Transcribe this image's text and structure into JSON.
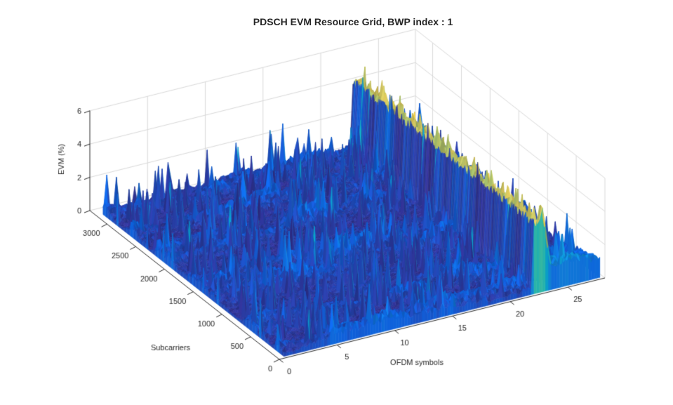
{
  "chart_data": {
    "type": "surface",
    "title": "PDSCH EVM Resource Grid, BWP index : 1",
    "xlabel": "OFDM symbols",
    "ylabel": "Subcarriers",
    "zlabel": "EVM (%)",
    "x_ticks": [
      0,
      5,
      10,
      15,
      20,
      25
    ],
    "y_ticks": [
      0,
      500,
      1000,
      1500,
      2000,
      2500,
      3000
    ],
    "z_ticks": [
      0,
      2,
      4,
      6
    ],
    "xlim": [
      0,
      28.2
    ],
    "ylim": [
      0,
      3300
    ],
    "zlim": [
      0,
      6
    ],
    "grid": true,
    "legend": "none",
    "colormap": "parula",
    "colormap_stops": [
      "#352a87",
      "#0f62dd",
      "#1283d4",
      "#07a9c2",
      "#35b8a2",
      "#88bd77",
      "#d3bb55",
      "#f9cb35",
      "#f9fb0e"
    ],
    "surface": {
      "description": "Per-resource-element EVM (%) over the PDSCH resource grid: ~28 OFDM symbols by ~3200 subcarriers of low noisy EVM, a tall high-EVM wall near symbols 22-23 across all subcarriers, a descending high-EVM ramp at low subcarriers just after the wall, and a moderate ridge near the last symbols at low subcarriers.",
      "data_extent": {
        "symbols": [
          0.55,
          27.9
        ],
        "subcarriers": [
          30,
          3180
        ]
      },
      "baseline_evm_range": [
        0.1,
        1.5
      ],
      "speckle_density": 0.035,
      "speckle_evm_add": [
        0.6,
        2.2
      ],
      "subcarrier_band_period": 620,
      "high_evm_wall": {
        "symbol_range": [
          22.0,
          22.9
        ],
        "evm_range": [
          4.0,
          5.0
        ]
      },
      "end_ramp": {
        "symbol_range": [
          22.9,
          23.7
        ],
        "subcarrier_range": [
          0,
          80
        ],
        "evm_from_to": [
          5.15,
          1.0
        ]
      },
      "corner_ridge": {
        "symbol_range": [
          23.6,
          27.9
        ],
        "subcarrier_range": [
          0,
          560
        ],
        "evm_max": 2.7
      }
    }
  },
  "axis_style": {
    "tick_label_color": "#262626",
    "axis_line_color": "#262626",
    "grid_line_color": "#d9d9d9",
    "background": "#ffffff",
    "tick_font_px": 11,
    "title_font_px": 14
  }
}
